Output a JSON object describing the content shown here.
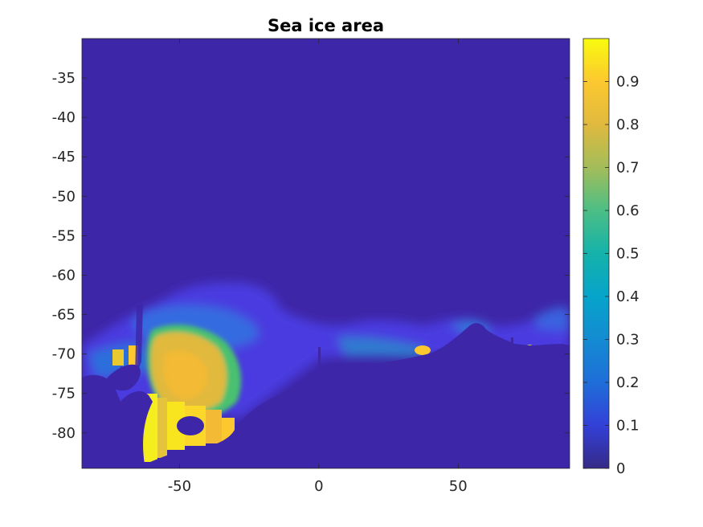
{
  "chart_data": {
    "type": "heatmap",
    "title": "Sea ice area",
    "xlabel": "",
    "ylabel": "",
    "xlim": [
      -85,
      90
    ],
    "ylim": [
      -84.5,
      -30
    ],
    "x_ticks": [
      -50,
      0,
      50
    ],
    "x_tick_labels": [
      "-50",
      "0",
      "50"
    ],
    "y_ticks": [
      -35,
      -40,
      -45,
      -50,
      -55,
      -60,
      -65,
      -70,
      -75,
      -80
    ],
    "y_tick_labels": [
      "-35",
      "-40",
      "-45",
      "-50",
      "-55",
      "-60",
      "-65",
      "-70",
      "-75",
      "-80"
    ],
    "colorbar": {
      "colormap": "parula",
      "range": [
        0,
        1
      ],
      "ticks": [
        0,
        0.1,
        0.2,
        0.3,
        0.4,
        0.5,
        0.6,
        0.7,
        0.8,
        0.9
      ],
      "tick_labels": [
        "0",
        "0.1",
        "0.2",
        "0.3",
        "0.4",
        "0.5",
        "0.6",
        "0.7",
        "0.8",
        "0.9"
      ]
    },
    "background_value": 0,
    "regions": [
      {
        "lon": [
          -62,
          -50
        ],
        "lat": [
          -83,
          -73
        ],
        "value": 0.92
      },
      {
        "lon": [
          -58,
          -45
        ],
        "lat": [
          -75,
          -67
        ],
        "value": 0.82
      },
      {
        "lon": [
          -50,
          -38
        ],
        "lat": [
          -73,
          -66
        ],
        "value": 0.7
      },
      {
        "lon": [
          -45,
          -30
        ],
        "lat": [
          -70,
          -64
        ],
        "value": 0.45
      },
      {
        "lon": [
          -80,
          -65
        ],
        "lat": [
          -72,
          -68
        ],
        "value": 0.3
      },
      {
        "lon": [
          -30,
          10
        ],
        "lat": [
          -70,
          -64
        ],
        "value": 0.2
      },
      {
        "lon": [
          10,
          70
        ],
        "lat": [
          -70,
          -65
        ],
        "value": 0.25
      },
      {
        "lon": [
          35,
          38
        ],
        "lat": [
          -70,
          -69
        ],
        "value": 0.85
      },
      {
        "lon": [
          74,
          79
        ],
        "lat": [
          -70,
          -68
        ],
        "value": 0.7
      }
    ]
  },
  "colors": {
    "background_low": "#3e26a8",
    "high": "#f9fb0e",
    "axis": "#262626"
  }
}
